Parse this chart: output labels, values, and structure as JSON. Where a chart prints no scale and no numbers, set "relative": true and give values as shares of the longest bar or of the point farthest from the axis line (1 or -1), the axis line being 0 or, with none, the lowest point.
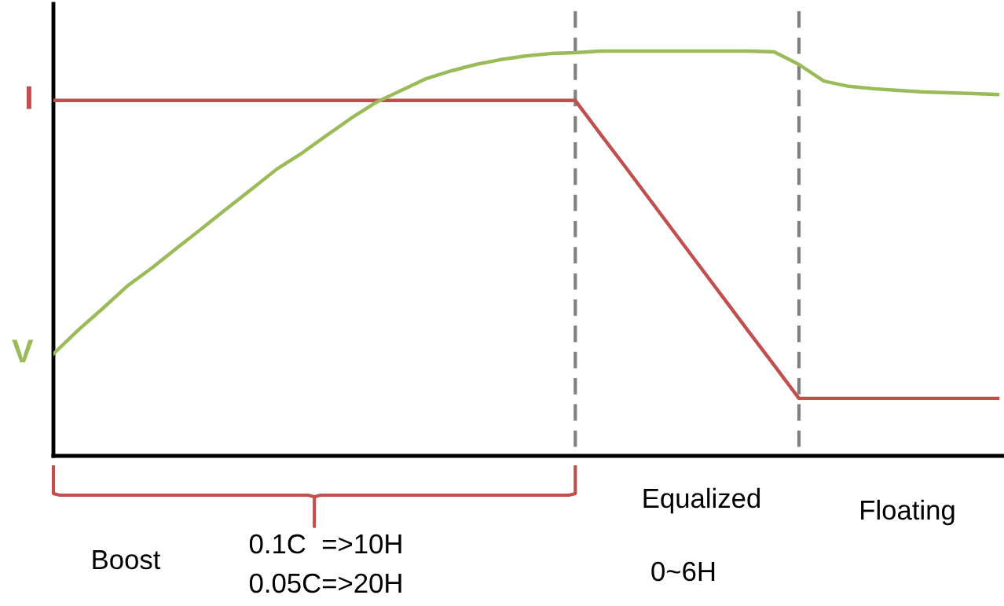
{
  "chart_data": {
    "type": "line",
    "relative": true,
    "categories": [
      null,
      null,
      null,
      null,
      null,
      null,
      null,
      null,
      null,
      null,
      null,
      null,
      null,
      null,
      null,
      null,
      null,
      null,
      null,
      null,
      null,
      null,
      null,
      null,
      null,
      null,
      null,
      null,
      null,
      null,
      null,
      null,
      null,
      null,
      null,
      null,
      null,
      null,
      null
    ],
    "series": [
      {
        "name": "I",
        "color": "#c0504d",
        "values": [
          0.878,
          0.878,
          0.878,
          0.878,
          0.878,
          0.878,
          0.878,
          0.878,
          0.878,
          0.878,
          0.878,
          0.878,
          0.878,
          0.878,
          0.878,
          0.878,
          0.878,
          0.878,
          0.878,
          0.878,
          0.878,
          0.878,
          0.796,
          0.715,
          0.633,
          0.551,
          0.469,
          0.387,
          0.305,
          0.224,
          0.142,
          0.142,
          0.142,
          0.142,
          0.142,
          0.142,
          0.142,
          0.142,
          0.142
        ]
      },
      {
        "name": "V",
        "color": "#9bbb59",
        "values": [
          0.252,
          0.311,
          0.365,
          0.421,
          0.466,
          0.515,
          0.563,
          0.612,
          0.66,
          0.709,
          0.748,
          0.792,
          0.835,
          0.874,
          0.903,
          0.932,
          0.951,
          0.967,
          0.979,
          0.988,
          0.994,
          0.996,
          1.0,
          1.0,
          1.0,
          1.0,
          1.0,
          1.0,
          1.0,
          0.998,
          0.967,
          0.926,
          0.913,
          0.907,
          0.903,
          0.899,
          0.897,
          0.895,
          0.893
        ]
      }
    ],
    "annotations": [
      "Boost",
      "0.1C  =>10H",
      "0.05C=>20H",
      "Equalized",
      "0~6H",
      "Floating"
    ],
    "legend": false,
    "grid": false
  }
}
